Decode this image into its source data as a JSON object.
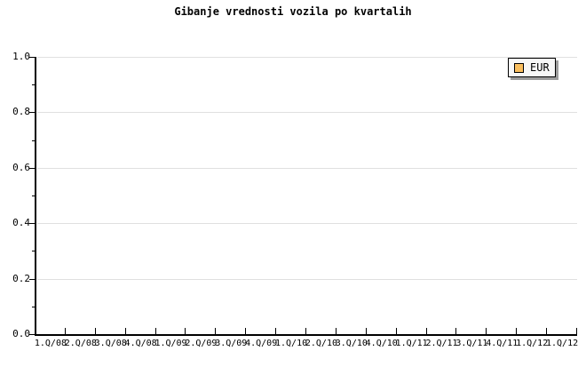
{
  "chart_data": {
    "type": "line",
    "title": "Gibanje vrednosti vozila po kvartalih",
    "categories": [
      "1.Q/08",
      "2.Q/08",
      "3.Q/08",
      "4.Q/08",
      "1.Q/09",
      "2.Q/09",
      "3.Q/09",
      "4.Q/09",
      "1.Q/10",
      "2.Q/10",
      "3.Q/10",
      "4.Q/10",
      "1.Q/11",
      "2.Q/11",
      "3.Q/11",
      "4.Q/11",
      "1.Q/12",
      "1.Q/12"
    ],
    "series": [
      {
        "name": "EUR",
        "color": "#f9be5e",
        "values": []
      }
    ],
    "xlabel": "",
    "ylabel": "",
    "ylim": [
      0.0,
      1.0
    ],
    "y_tick_labels": [
      "0.0",
      "0.2",
      "0.4",
      "0.6",
      "0.8",
      "1.0"
    ],
    "y_major_step": 0.2,
    "y_minor_step": 0.1,
    "grid": "horizontal-major",
    "legend_position": "top-right"
  },
  "legend": {
    "label": "EUR",
    "swatch_color": "#f9be5e"
  },
  "colors": {
    "background": "#ffffff",
    "text": "#000000",
    "axis": "#000000",
    "gridline": "#e0e0e0",
    "legend_background": "#f7f7f7",
    "legend_border": "#000000",
    "legend_shadow": "#9c9c9c",
    "swatch_border": "#000000"
  }
}
